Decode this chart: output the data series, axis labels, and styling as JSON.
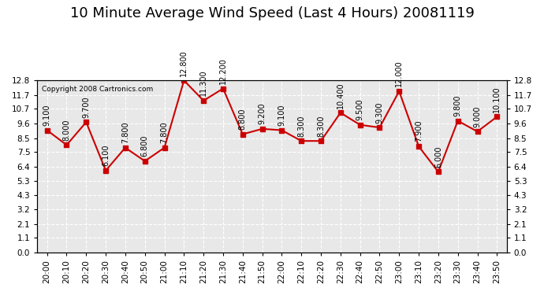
{
  "title": "10 Minute Average Wind Speed (Last 4 Hours) 20081119",
  "copyright": "Copyright 2008 Cartronics.com",
  "x_labels": [
    "20:00",
    "20:10",
    "20:20",
    "20:30",
    "20:40",
    "20:50",
    "21:00",
    "21:10",
    "21:20",
    "21:30",
    "21:40",
    "21:50",
    "22:00",
    "22:10",
    "22:20",
    "22:30",
    "22:40",
    "22:50",
    "23:00",
    "23:10",
    "23:20",
    "23:30",
    "23:40",
    "23:50"
  ],
  "y_values": [
    9.1,
    8.0,
    9.7,
    6.1,
    7.8,
    6.8,
    7.8,
    12.8,
    11.3,
    12.2,
    8.8,
    9.2,
    9.1,
    8.3,
    8.3,
    10.4,
    9.5,
    9.3,
    12.0,
    7.9,
    6.0,
    9.8,
    9.0,
    10.1
  ],
  "point_labels": [
    "9.100",
    "8.000",
    "9.700",
    "6.100",
    "7.800",
    "6.800",
    "7.800",
    "12.800",
    "11.300",
    "12.200",
    "8.800",
    "9.200",
    "9.100",
    "8.300",
    "8.300",
    "10.400",
    "9.500",
    "9.300",
    "12.000",
    "7.900",
    "6.000",
    "9.800",
    "9.000",
    "10.100"
  ],
  "line_color": "#cc0000",
  "marker_color": "#cc0000",
  "bg_color": "#ffffff",
  "plot_bg_color": "#e8e8e8",
  "grid_color": "#ffffff",
  "ylim": [
    0.0,
    12.8
  ],
  "yticks": [
    0.0,
    1.1,
    2.1,
    3.2,
    4.3,
    5.3,
    6.4,
    7.5,
    8.5,
    9.6,
    10.7,
    11.7,
    12.8
  ],
  "title_fontsize": 13,
  "label_fontsize": 7.5,
  "tick_fontsize": 7.5
}
